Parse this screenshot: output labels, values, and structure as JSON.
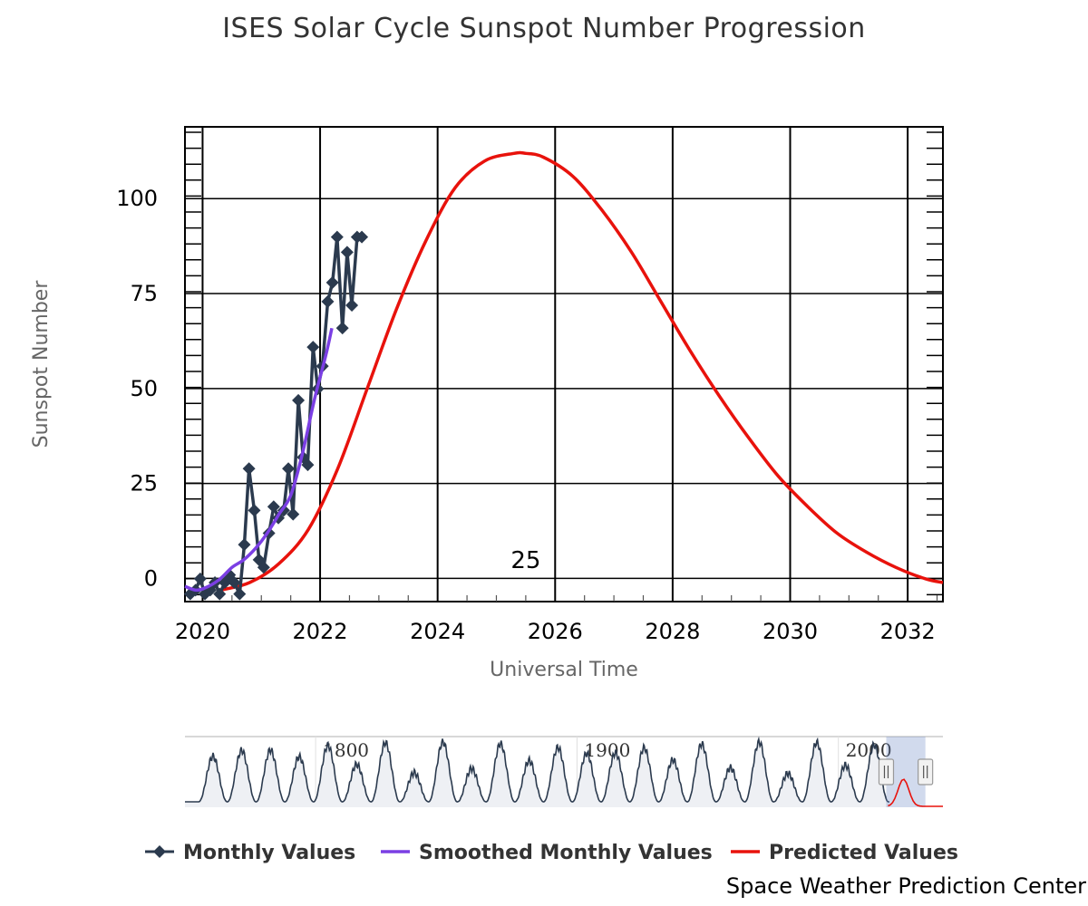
{
  "chart_data": {
    "type": "line",
    "title": "ISES Solar Cycle Sunspot Number Progression",
    "xlabel": "Universal Time",
    "ylabel": "Sunspot Number",
    "x_range": [
      2019.7,
      2032.6
    ],
    "ylim": [
      -3,
      122
    ],
    "x_ticks": [
      2020,
      2022,
      2024,
      2026,
      2028,
      2030,
      2032
    ],
    "x_tick_labels": [
      "2020",
      "2022",
      "2024",
      "2026",
      "2028",
      "2030",
      "2032"
    ],
    "y_ticks": [
      0,
      25,
      50,
      75,
      100
    ],
    "y_tick_labels": [
      "0",
      "25",
      "50",
      "75",
      "100"
    ],
    "grid": true,
    "legend_position": "bottom",
    "annotation": {
      "text": "25",
      "x": 2025.5,
      "y": 8
    },
    "series": [
      {
        "name": "Monthly Values",
        "color": "#2b3a4e",
        "marker": "diamond",
        "x": [
          2019.79,
          2019.88,
          2019.96,
          2020.04,
          2020.13,
          2020.21,
          2020.29,
          2020.38,
          2020.46,
          2020.54,
          2020.63,
          2020.71,
          2020.79,
          2020.88,
          2020.96,
          2021.04,
          2021.13,
          2021.21,
          2021.29,
          2021.38,
          2021.46,
          2021.54,
          2021.63,
          2021.71,
          2021.79,
          2021.88,
          2021.96,
          2022.04,
          2022.13,
          2022.21,
          2022.29,
          2022.38,
          2022.46,
          2022.54,
          2022.63,
          2022.71
        ],
        "y": [
          -1,
          0,
          3,
          -1,
          0,
          2,
          -1,
          2,
          4,
          2,
          -1,
          12,
          32,
          21,
          8,
          6,
          15,
          22,
          19,
          21,
          32,
          20,
          50,
          35,
          33,
          64,
          53,
          59,
          76,
          81,
          93,
          69,
          89,
          75,
          93,
          93
        ]
      },
      {
        "name": "Smoothed Monthly Values",
        "color": "#7b3fe4",
        "x": [
          2019.7,
          2019.9,
          2020.1,
          2020.3,
          2020.5,
          2020.7,
          2020.9,
          2021.1,
          2021.3,
          2021.5,
          2021.7,
          2021.9,
          2022.1,
          2022.2
        ],
        "y": [
          1,
          0,
          1,
          3,
          6,
          8,
          11,
          15,
          20,
          25,
          36,
          50,
          62,
          69
        ]
      },
      {
        "name": "Predicted Values",
        "color": "#e8120c",
        "peak_x": 2025.5,
        "peak_y": 115,
        "x": [
          2020.3,
          2020.8,
          2021.3,
          2021.8,
          2022.3,
          2022.8,
          2023.3,
          2023.8,
          2024.3,
          2024.8,
          2025.3,
          2025.5,
          2025.8,
          2026.3,
          2026.8,
          2027.3,
          2027.8,
          2028.3,
          2028.8,
          2029.3,
          2029.8,
          2030.3,
          2030.8,
          2031.3,
          2031.8,
          2032.3,
          2032.6
        ],
        "y": [
          0,
          2,
          7,
          16,
          32,
          53,
          74,
          92,
          106,
          113,
          115,
          115,
          114,
          109,
          100,
          89,
          76,
          63,
          51,
          40,
          30,
          22,
          15,
          10,
          6,
          3,
          2
        ]
      }
    ],
    "navigator": {
      "labels": [
        "1800",
        "1900",
        "2000"
      ],
      "label_years": [
        1800,
        1900,
        2000
      ],
      "x_range": [
        1750,
        2040
      ],
      "selected_range": [
        2019.7,
        2032.6
      ]
    }
  },
  "footer": {
    "credit": "Space Weather Prediction Center"
  }
}
